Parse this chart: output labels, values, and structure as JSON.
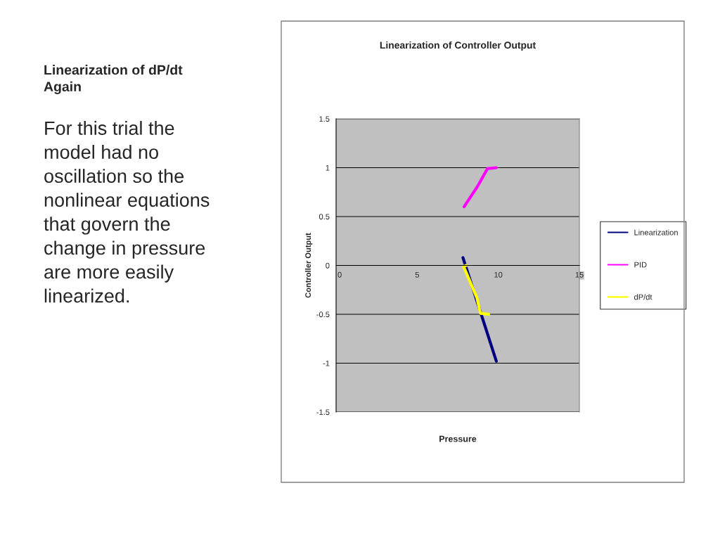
{
  "chart_data": {
    "type": "line",
    "title": "Linearization of Controller Output",
    "xlabel": "Pressure",
    "ylabel": "Controller Output",
    "annotations": [
      "Linearization of dP/dt\nAgain",
      "For this trial the\nmodel had no\noscillation so the\nnonlinear equations\nthat govern the\nchange in pressure\nare more easily\nlinearized."
    ],
    "series": [
      {
        "name": "Linearization",
        "color": "#000080",
        "x": [
          7.82,
          9.88
        ],
        "values": [
          0.08,
          -0.98
        ]
      },
      {
        "name": "PID",
        "color": "#ff00ff",
        "x": [
          7.89,
          8.76,
          9.33,
          9.88
        ],
        "values": [
          0.6,
          0.82,
          0.99,
          1.0
        ]
      },
      {
        "name": "dP/dt",
        "color": "#ffff00",
        "x": [
          8.03,
          7.86,
          8.68,
          8.9,
          9.41
        ],
        "values": [
          0.0,
          -0.01,
          -0.33,
          -0.49,
          -0.5
        ]
      }
    ],
    "xlim": [
      0,
      15
    ],
    "xticks": [
      0,
      5,
      10,
      15
    ],
    "ylim": [
      -1.5,
      1.5
    ],
    "yticks": [
      -1.5,
      -1,
      -0.5,
      0,
      0.5,
      1,
      1.5
    ],
    "grid": "y",
    "legend": "right",
    "line_style": "solid",
    "marker": "none"
  }
}
